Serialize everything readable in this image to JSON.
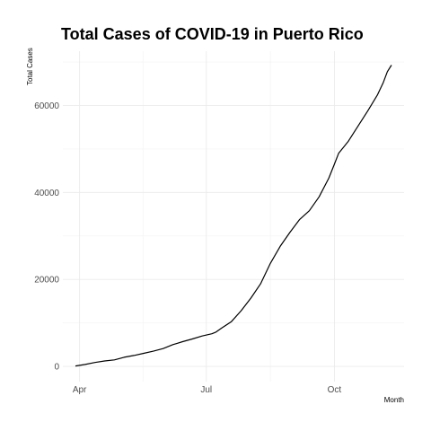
{
  "chart_data": {
    "type": "line",
    "title": "Total Cases of COVID-19 in Puerto Rico",
    "xlabel": "Month",
    "ylabel": "Total Cases",
    "x_ticks": [
      "Apr",
      "Jul",
      "Oct"
    ],
    "x_tick_dates": [
      "2020-04-01",
      "2020-07-01",
      "2020-10-01"
    ],
    "y_ticks": [
      0,
      20000,
      40000,
      60000
    ],
    "y_tick_labels": [
      "0",
      "20000",
      "40000",
      "60000"
    ],
    "xlim": [
      "2020-03-20",
      "2020-11-20"
    ],
    "ylim": [
      -3500,
      72500
    ],
    "grid": true,
    "legend": "none",
    "line_color": "#000000",
    "series": [
      {
        "x": [
          "2020-03-29",
          "2020-04-05",
          "2020-04-12",
          "2020-04-19",
          "2020-04-26",
          "2020-05-03",
          "2020-05-10",
          "2020-05-17",
          "2020-05-24",
          "2020-05-31",
          "2020-06-07",
          "2020-06-10",
          "2020-06-14",
          "2020-06-21",
          "2020-06-28",
          "2020-07-05",
          "2020-07-08",
          "2020-07-12",
          "2020-07-19",
          "2020-07-26",
          "2020-08-02",
          "2020-08-09",
          "2020-08-16",
          "2020-08-23",
          "2020-08-30",
          "2020-09-06",
          "2020-09-13",
          "2020-09-20",
          "2020-09-27",
          "2020-10-01",
          "2020-10-04",
          "2020-10-11",
          "2020-10-18",
          "2020-10-25",
          "2020-11-01",
          "2020-11-05",
          "2020-11-08",
          "2020-11-11"
        ],
        "y": [
          100,
          450,
          900,
          1250,
          1500,
          2100,
          2500,
          3000,
          3500,
          4100,
          5000,
          5300,
          5700,
          6300,
          7000,
          7500,
          7900,
          8800,
          10300,
          12800,
          15700,
          19000,
          23700,
          27600,
          30800,
          33800,
          35800,
          39000,
          43300,
          46500,
          49000,
          51800,
          55300,
          58800,
          62500,
          65200,
          67800,
          69300
        ]
      }
    ]
  }
}
